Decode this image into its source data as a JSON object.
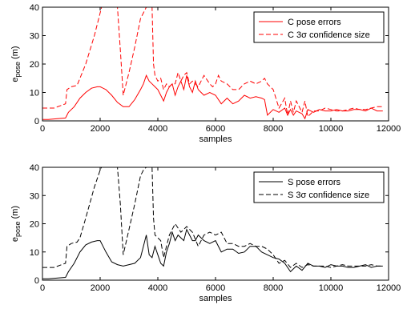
{
  "chart_data": [
    {
      "type": "line",
      "title": "",
      "xlabel": "samples",
      "ylabel": "e",
      "ylabel_sub": "pose",
      "ylabel_unit": " (m)",
      "xlim": [
        0,
        12000
      ],
      "ylim": [
        0,
        40
      ],
      "xticks": [
        0,
        2000,
        4000,
        6000,
        8000,
        10000,
        12000
      ],
      "yticks": [
        0,
        10,
        20,
        30,
        40
      ],
      "grid": false,
      "legend_position": "top-right",
      "color": "#ff0000",
      "series": [
        {
          "name": "C pose errors",
          "style": "solid",
          "x": [
            0,
            200,
            800,
            900,
            1100,
            1300,
            1500,
            1700,
            1900,
            2000,
            2200,
            2400,
            2600,
            2800,
            3000,
            3200,
            3400,
            3500,
            3600,
            3700,
            3800,
            3900,
            4000,
            4100,
            4200,
            4300,
            4400,
            4500,
            4600,
            4700,
            4800,
            4900,
            5000,
            5100,
            5200,
            5300,
            5400,
            5500,
            5600,
            5800,
            6000,
            6200,
            6400,
            6600,
            6800,
            7000,
            7200,
            7400,
            7600,
            7700,
            7800,
            8000,
            8200,
            8400,
            8500,
            8600,
            8700,
            8800,
            9000,
            9100,
            9200,
            9400,
            9600,
            9800,
            10000,
            10200,
            10400,
            10600,
            10800,
            11000,
            11200,
            11400,
            11600,
            11800
          ],
          "y": [
            0.5,
            0.5,
            1,
            3,
            5,
            8,
            10,
            11.5,
            12,
            12,
            11,
            9,
            6.5,
            5,
            5,
            7.5,
            11,
            13,
            16,
            14,
            13,
            12,
            11,
            9,
            7,
            10,
            12,
            13,
            9,
            12,
            14,
            11,
            16,
            12,
            10,
            14,
            11,
            10,
            9,
            10,
            9,
            6,
            8,
            6,
            7,
            9,
            8,
            8.5,
            8,
            7.5,
            2,
            4,
            3,
            4.5,
            2,
            4,
            2,
            3.5,
            2.5,
            0.8,
            4,
            3,
            4,
            3.5,
            3.5,
            4,
            3.5,
            3.5,
            4,
            4,
            3.5,
            4.5,
            3.5,
            3.5
          ]
        },
        {
          "name": "C 3σ confidence size",
          "style": "dashed",
          "x": [
            0,
            400,
            800,
            850,
            1000,
            1200,
            1300,
            1500,
            1800,
            2000,
            2050,
            2200,
            2500,
            2600,
            2700,
            2800,
            3000,
            3200,
            3400,
            3500,
            3600,
            3700,
            3800,
            3850,
            3900,
            4000,
            4100,
            4200,
            4300,
            4400,
            4500,
            4600,
            4700,
            4800,
            4900,
            5000,
            5100,
            5200,
            5400,
            5600,
            5800,
            5900,
            6000,
            6100,
            6200,
            6400,
            6600,
            6800,
            7000,
            7200,
            7400,
            7600,
            7700,
            7800,
            8000,
            8200,
            8400,
            8500,
            8600,
            8700,
            8800,
            9000,
            9100,
            9200,
            9400,
            9600,
            9800,
            10000,
            10200,
            10400,
            10600,
            10800,
            11000,
            11200,
            11400,
            11600,
            11800
          ],
          "y": [
            4.5,
            4.5,
            6,
            11,
            12,
            12.5,
            15,
            20,
            30,
            38,
            40,
            40,
            40,
            40,
            25,
            9,
            17,
            26,
            36,
            38,
            40,
            40,
            40,
            20,
            16,
            14,
            15,
            11,
            13,
            12,
            13,
            13,
            17,
            14,
            16,
            17,
            13,
            14,
            12,
            16,
            13,
            12,
            13,
            16,
            14,
            13,
            11,
            11,
            13,
            14,
            13,
            14,
            15,
            13,
            11,
            4.5,
            8,
            2,
            7,
            3,
            7,
            3,
            7,
            1.5,
            3.5,
            3.5,
            4.5,
            4,
            3.5,
            3.5,
            4,
            4.5,
            4,
            4,
            4.5,
            5,
            5
          ]
        }
      ]
    },
    {
      "type": "line",
      "title": "",
      "xlabel": "samples",
      "ylabel": "e",
      "ylabel_sub": "pose",
      "ylabel_unit": " (m)",
      "xlim": [
        0,
        12000
      ],
      "ylim": [
        0,
        40
      ],
      "xticks": [
        0,
        2000,
        4000,
        6000,
        8000,
        10000,
        12000
      ],
      "yticks": [
        0,
        10,
        20,
        30,
        40
      ],
      "grid": false,
      "legend_position": "top-right",
      "color": "#000000",
      "series": [
        {
          "name": "S pose errors",
          "style": "solid",
          "x": [
            0,
            200,
            800,
            900,
            1100,
            1300,
            1500,
            1700,
            1900,
            2000,
            2200,
            2400,
            2600,
            2800,
            3000,
            3200,
            3400,
            3500,
            3600,
            3700,
            3800,
            3900,
            4000,
            4100,
            4200,
            4300,
            4400,
            4500,
            4600,
            4700,
            4800,
            4900,
            5000,
            5100,
            5200,
            5300,
            5400,
            5600,
            5800,
            6000,
            6200,
            6400,
            6600,
            6800,
            7000,
            7200,
            7400,
            7600,
            7800,
            8000,
            8200,
            8400,
            8600,
            8800,
            9000,
            9200,
            9400,
            9600,
            9800,
            10000,
            10200,
            10400,
            10600,
            10800,
            11000,
            11200,
            11400,
            11600,
            11800
          ],
          "y": [
            0.5,
            0.5,
            1,
            3,
            6,
            10,
            12.5,
            13.5,
            14,
            14,
            10,
            6.5,
            5.5,
            5,
            5.5,
            6,
            8,
            12,
            16,
            9,
            8,
            12,
            9,
            6,
            5,
            10,
            13,
            17,
            14,
            16,
            15,
            14,
            18,
            16,
            14,
            14,
            16,
            14,
            13,
            14,
            10,
            11,
            11,
            9.5,
            10,
            12,
            12,
            10,
            9,
            8,
            7.5,
            6,
            3,
            5,
            3.5,
            6,
            5,
            5,
            4.5,
            5.5,
            5,
            5,
            4.5,
            4.5,
            5,
            5.5,
            4.5,
            5,
            5
          ]
        },
        {
          "name": "S 3σ confidence size",
          "style": "dashed",
          "x": [
            0,
            400,
            800,
            850,
            1000,
            1200,
            1300,
            1500,
            1800,
            2000,
            2050,
            2200,
            2500,
            2600,
            2700,
            2800,
            3000,
            3200,
            3400,
            3500,
            3600,
            3700,
            3800,
            3850,
            3900,
            4000,
            4100,
            4200,
            4300,
            4400,
            4600,
            4800,
            5000,
            5200,
            5400,
            5600,
            5800,
            6000,
            6200,
            6400,
            6600,
            6800,
            7000,
            7200,
            7400,
            7600,
            7800,
            8000,
            8200,
            8400,
            8600,
            8800,
            9000,
            9200,
            9400,
            9600,
            9800,
            10000,
            10200,
            10400,
            10600,
            10800,
            11000,
            11200,
            11400,
            11600,
            11800
          ],
          "y": [
            4.5,
            4.5,
            6,
            12,
            13,
            13.5,
            15,
            22,
            33,
            39,
            40,
            40,
            40,
            40,
            27,
            9,
            18,
            27,
            37,
            39,
            40,
            40,
            40,
            22,
            16,
            15,
            14,
            8,
            12,
            16,
            20,
            17,
            19,
            17,
            12,
            16,
            17,
            16,
            17,
            13,
            13,
            12,
            12,
            13,
            12,
            12,
            11,
            9,
            6,
            7,
            4.5,
            6,
            4.5,
            5.5,
            5,
            5,
            5,
            4.5,
            5,
            5.5,
            5,
            5,
            5,
            5,
            5.5,
            5,
            5
          ]
        }
      ]
    }
  ]
}
